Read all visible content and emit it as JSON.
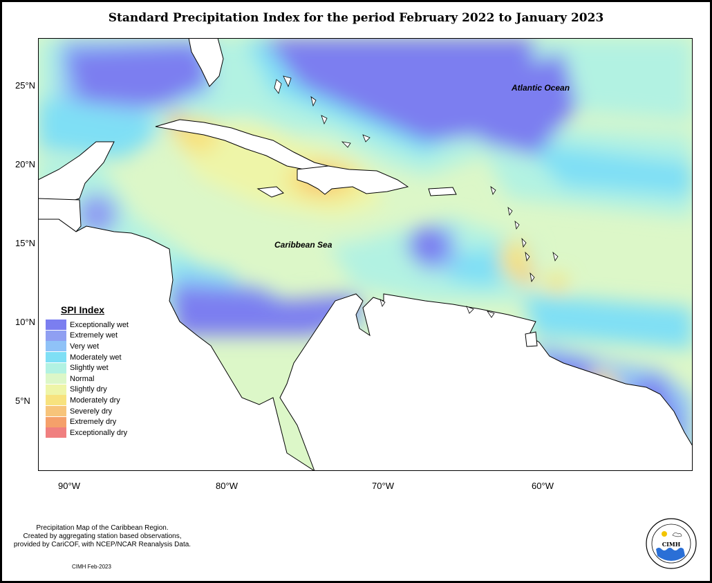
{
  "title": "Standard Precipitation Index for the period February 2022 to January 2023",
  "axes": {
    "lat_labels": [
      "25°N",
      "20°N",
      "15°N",
      "10°N",
      "5°N"
    ],
    "lon_labels": [
      "90°W",
      "80°W",
      "70°W",
      "60°W"
    ]
  },
  "map_labels": {
    "atlantic": "Atlantic Ocean",
    "caribbean": "Caribbean Sea"
  },
  "legend": {
    "title": "SPI Index",
    "items": [
      {
        "label": "Exceptionally wet",
        "color": "#7b7ef0"
      },
      {
        "label": "Extremely wet",
        "color": "#8f9ff2"
      },
      {
        "label": "Very wet",
        "color": "#8fc2f7"
      },
      {
        "label": "Moderately wet",
        "color": "#7fdff5"
      },
      {
        "label": "Slightly wet",
        "color": "#b2f2e2"
      },
      {
        "label": "Normal",
        "color": "#dcf7c8"
      },
      {
        "label": "Slightly dry",
        "color": "#eef5a8"
      },
      {
        "label": "Moderately dry",
        "color": "#f7e27e"
      },
      {
        "label": "Severely dry",
        "color": "#f7c47a"
      },
      {
        "label": "Extremely dry",
        "color": "#f5a06a"
      },
      {
        "label": "Exceptionally dry",
        "color": "#f07f7f"
      }
    ]
  },
  "caption": {
    "line1": "Precipitation Map of the Caribbean Region.",
    "line2": "Created by aggregating station based observations,",
    "line3": "provided by CariCOF, with NCEP/NCAR Reanalysis Data."
  },
  "credit": "CIMH Feb-2023",
  "logo": {
    "text": "CIMH"
  }
}
